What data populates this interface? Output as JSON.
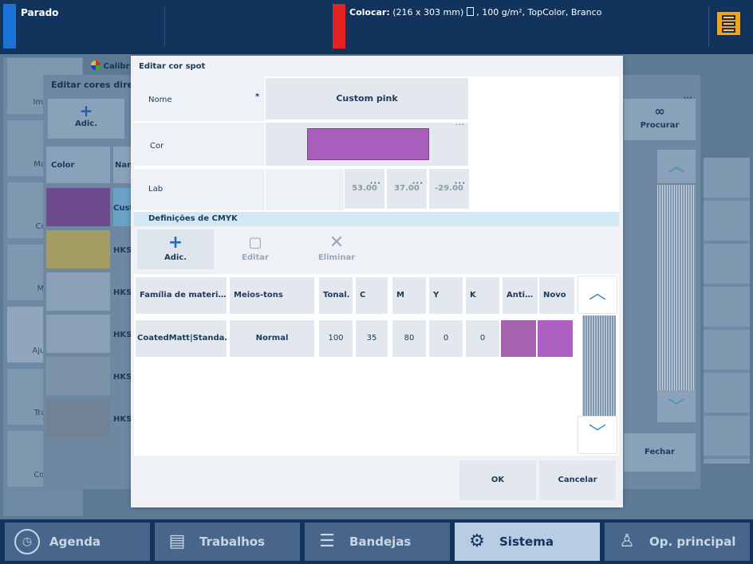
{
  "status": {
    "state": "Parado",
    "load_label": "Colocar:",
    "load_size": "(216 x 303 mm)",
    "load_detail": ", 100 g/m², TopColor, Branco",
    "state_color": "#1a73d4",
    "alert_color": "#e32222"
  },
  "background": {
    "side_buttons": [
      "Impre",
      "Manu",
      "Conf",
      "Mat",
      "Ajuste",
      "Trans",
      "Contr"
    ],
    "tab_label": "Calibr",
    "dialog_title": "Editar cores diretas",
    "add_label": "Adic.",
    "color_header": "Color",
    "name_header": "Nan",
    "rows": [
      "Cust",
      "HKS",
      "HKS",
      "HKS",
      "HKS",
      "HKS"
    ],
    "search_label": "Procurar",
    "close_label": "Fechar",
    "more": "···"
  },
  "dialog": {
    "title": "Editar cor spot",
    "name_label": "Nome",
    "required_mark": "*",
    "name_value": "Custom pink",
    "color_label": "Cor",
    "color_value": "#a95fbb",
    "lab_label": "Lab",
    "lab_values": [
      "53.00",
      "37.00",
      "-29.00"
    ],
    "more": "···",
    "cmyk_section": "Definições de CMYK",
    "toolbar": {
      "add": "Adic.",
      "edit": "Editar",
      "delete": "Eliminar"
    },
    "table": {
      "headers": [
        "Família de materi…",
        "Meios-tons",
        "Tonal.",
        "C",
        "M",
        "Y",
        "K",
        "Anti…",
        "Novo"
      ],
      "row": {
        "family": "CoatedMatt|Standa…",
        "halftone": "Normal",
        "tonal": "100",
        "c": "35",
        "m": "80",
        "y": "0",
        "k": "0",
        "anti_color": "#a663b0",
        "new_color": "#ad60c2"
      }
    },
    "ok": "OK",
    "cancel": "Cancelar"
  },
  "nav": {
    "items": [
      "Agenda",
      "Trabalhos",
      "Bandejas",
      "Sistema",
      "Op. principal"
    ],
    "active": "Sistema"
  }
}
